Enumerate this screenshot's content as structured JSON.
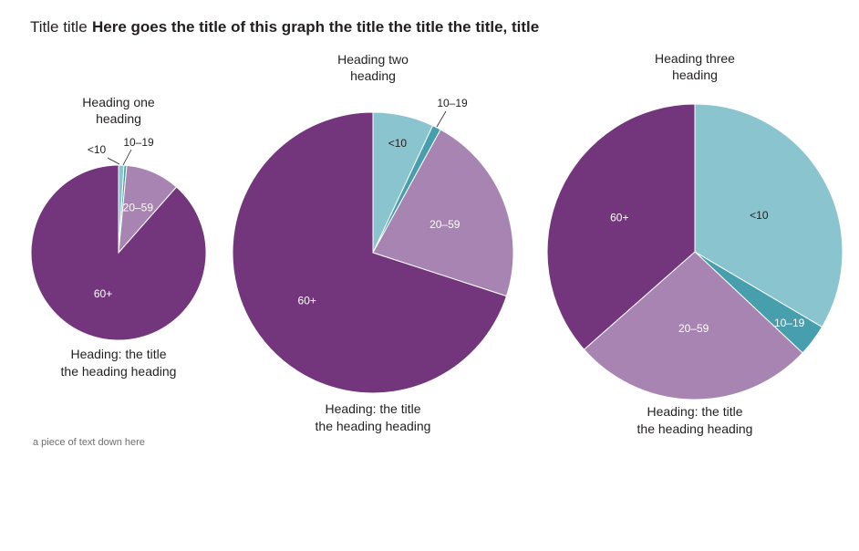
{
  "title": {
    "prefix": "Title title",
    "main": "Here goes the title of this graph the title the title the title, title"
  },
  "footnote": "a piece of text down here",
  "categories": [
    "<10",
    "10–19",
    "20–59",
    "60+"
  ],
  "colors": {
    "<10": "#8ac4cf",
    "10–19": "#479fae",
    "20–59": "#a784b1",
    "60+": "#73367d",
    "label_light": "#ffffff",
    "label_dark": "#231f20"
  },
  "chart_data": [
    {
      "type": "pie",
      "top_heading": [
        "Heading one",
        "heading"
      ],
      "bottom_heading": [
        "Heading: the title",
        "the heading heading"
      ],
      "categories": [
        "<10",
        "10–19",
        "20–59",
        "60+"
      ],
      "values": [
        1,
        0.5,
        10,
        88.5
      ]
    },
    {
      "type": "pie",
      "top_heading": [
        "Heading two",
        "heading"
      ],
      "bottom_heading": [
        "Heading: the title",
        "the heading heading"
      ],
      "categories": [
        "<10",
        "10–19",
        "20–59",
        "60+"
      ],
      "values": [
        7,
        1,
        22,
        70
      ]
    },
    {
      "type": "pie",
      "top_heading": [
        "Heading three",
        "heading"
      ],
      "bottom_heading": [
        "Heading: the title",
        "the heading heading"
      ],
      "categories": [
        "<10",
        "10–19",
        "20–59",
        "60+"
      ],
      "values": [
        33.5,
        3.5,
        26.5,
        36.5
      ]
    }
  ]
}
